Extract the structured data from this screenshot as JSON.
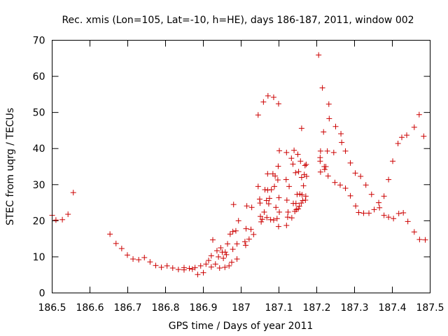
{
  "chart_data": {
    "type": "scatter",
    "title": "Rec. xmis (Lon=105, Lat=-10, h=HE), days 186-187, 2011, window 002",
    "xlabel": "GPS time / Days of year 2011",
    "ylabel": "STEC from uqrg / TECUs",
    "xlim": [
      186.5,
      187.5
    ],
    "ylim": [
      0,
      70
    ],
    "x_ticks": [
      186.5,
      186.6,
      186.7,
      186.8,
      186.9,
      187.0,
      187.1,
      187.2,
      187.3,
      187.4,
      187.5
    ],
    "x_tick_labels": [
      "186.5",
      "186.6",
      "186.7",
      "186.8",
      "186.9",
      "187",
      "187.1",
      "187.2",
      "187.3",
      "187.4",
      "187.5"
    ],
    "y_ticks": [
      0,
      10,
      20,
      30,
      40,
      50,
      60,
      70
    ],
    "y_tick_labels": [
      "0",
      "10",
      "20",
      "30",
      "40",
      "50",
      "60",
      "70"
    ],
    "grid": false,
    "legend": "none",
    "marker": "+",
    "color": "#cc0000",
    "series": [
      {
        "points": [
          [
            186.5,
            21.5
          ],
          [
            186.51,
            20.2
          ],
          [
            186.527,
            20.3
          ],
          [
            186.542,
            21.8
          ],
          [
            186.556,
            27.8
          ],
          [
            186.653,
            16.3
          ],
          [
            186.669,
            13.7
          ],
          [
            186.684,
            12.3
          ],
          [
            186.699,
            10.5
          ],
          [
            186.714,
            9.4
          ],
          [
            186.729,
            9.2
          ],
          [
            186.744,
            9.8
          ],
          [
            186.759,
            8.6
          ],
          [
            186.774,
            7.6
          ],
          [
            186.789,
            7.1
          ],
          [
            186.804,
            7.5
          ],
          [
            186.819,
            6.9
          ],
          [
            186.834,
            6.5
          ],
          [
            186.849,
            6.4
          ],
          [
            186.849,
            7.0
          ],
          [
            186.863,
            6.8
          ],
          [
            186.871,
            6.6
          ],
          [
            186.878,
            7.0
          ],
          [
            186.885,
            5.1
          ],
          [
            186.893,
            7.5
          ],
          [
            186.9,
            5.6
          ],
          [
            186.907,
            8.0
          ],
          [
            186.914,
            9.0
          ],
          [
            186.921,
            7.2
          ],
          [
            186.921,
            10.3
          ],
          [
            186.925,
            14.7
          ],
          [
            186.932,
            8.0
          ],
          [
            186.936,
            11.7
          ],
          [
            186.94,
            10.0
          ],
          [
            186.943,
            6.9
          ],
          [
            186.946,
            12.5
          ],
          [
            186.95,
            11.3
          ],
          [
            186.953,
            9.6
          ],
          [
            186.957,
            7.1
          ],
          [
            186.958,
            11.3
          ],
          [
            186.961,
            10.6
          ],
          [
            186.964,
            13.6
          ],
          [
            186.968,
            7.5
          ],
          [
            186.971,
            16.3
          ],
          [
            186.975,
            8.5
          ],
          [
            186.978,
            12.1
          ],
          [
            186.978,
            17.0
          ],
          [
            186.98,
            24.5
          ],
          [
            186.986,
            17.2
          ],
          [
            186.989,
            13.6
          ],
          [
            186.989,
            9.4
          ],
          [
            186.993,
            20.0
          ],
          [
            187.01,
            14.2
          ],
          [
            187.012,
            13.2
          ],
          [
            187.013,
            17.8
          ],
          [
            187.015,
            24.1
          ],
          [
            187.021,
            14.9
          ],
          [
            187.026,
            17.6
          ],
          [
            187.028,
            23.7
          ],
          [
            187.033,
            16.2
          ],
          [
            187.045,
            29.5
          ],
          [
            187.045,
            49.3
          ],
          [
            187.049,
            26.0
          ],
          [
            187.05,
            24.9
          ],
          [
            187.051,
            21.2
          ],
          [
            187.053,
            19.7
          ],
          [
            187.056,
            20.4
          ],
          [
            187.059,
            52.9
          ],
          [
            187.061,
            22.4
          ],
          [
            187.063,
            28.6
          ],
          [
            187.067,
            25.6
          ],
          [
            187.068,
            20.9
          ],
          [
            187.07,
            28.5
          ],
          [
            187.07,
            33.0
          ],
          [
            187.071,
            54.6
          ],
          [
            187.073,
            24.7
          ],
          [
            187.075,
            26.2
          ],
          [
            187.078,
            20.3
          ],
          [
            187.08,
            28.6
          ],
          [
            187.084,
            33.0
          ],
          [
            187.086,
            20.2
          ],
          [
            187.086,
            54.2
          ],
          [
            187.088,
            29.5
          ],
          [
            187.09,
            32.4
          ],
          [
            187.092,
            23.7
          ],
          [
            187.095,
            20.6
          ],
          [
            187.097,
            31.3
          ],
          [
            187.098,
            35.1
          ],
          [
            187.099,
            18.4
          ],
          [
            187.099,
            52.4
          ],
          [
            187.1,
            26.4
          ],
          [
            187.101,
            22.4
          ],
          [
            187.101,
            39.4
          ],
          [
            187.119,
            31.4
          ],
          [
            187.12,
            18.7
          ],
          [
            187.12,
            38.9
          ],
          [
            187.121,
            25.7
          ],
          [
            187.123,
            21.0
          ],
          [
            187.124,
            22.4
          ],
          [
            187.127,
            29.5
          ],
          [
            187.133,
            37.3
          ],
          [
            187.134,
            20.8
          ],
          [
            187.137,
            35.7
          ],
          [
            187.138,
            24.8
          ],
          [
            187.14,
            39.5
          ],
          [
            187.142,
            22.6
          ],
          [
            187.144,
            33.3
          ],
          [
            187.145,
            24.8
          ],
          [
            187.146,
            23.1
          ],
          [
            187.148,
            27.3
          ],
          [
            187.15,
            38.4
          ],
          [
            187.151,
            23.3
          ],
          [
            187.152,
            33.6
          ],
          [
            187.154,
            24.0
          ],
          [
            187.155,
            27.4
          ],
          [
            187.157,
            36.5
          ],
          [
            187.159,
            24.9
          ],
          [
            187.16,
            32.0
          ],
          [
            187.16,
            45.6
          ],
          [
            187.161,
            27.2
          ],
          [
            187.163,
            25.6
          ],
          [
            187.165,
            29.7
          ],
          [
            187.167,
            32.8
          ],
          [
            187.169,
            35.3
          ],
          [
            187.17,
            25.7
          ],
          [
            187.171,
            26.8
          ],
          [
            187.172,
            35.6
          ],
          [
            187.173,
            32.3
          ],
          [
            187.205,
            65.9
          ],
          [
            187.209,
            36.5
          ],
          [
            187.209,
            37.5
          ],
          [
            187.21,
            39.3
          ],
          [
            187.21,
            33.5
          ],
          [
            187.215,
            56.8
          ],
          [
            187.218,
            44.6
          ],
          [
            187.22,
            35.0
          ],
          [
            187.221,
            34.2
          ],
          [
            187.224,
            35.0
          ],
          [
            187.228,
            39.3
          ],
          [
            187.23,
            32.4
          ],
          [
            187.232,
            52.3
          ],
          [
            187.233,
            48.3
          ],
          [
            187.245,
            38.9
          ],
          [
            187.248,
            30.6
          ],
          [
            187.25,
            46.1
          ],
          [
            187.262,
            29.9
          ],
          [
            187.264,
            44.1
          ],
          [
            187.266,
            41.7
          ],
          [
            187.276,
            39.3
          ],
          [
            187.276,
            29.0
          ],
          [
            187.289,
            26.9
          ],
          [
            187.289,
            36.0
          ],
          [
            187.302,
            33.2
          ],
          [
            187.303,
            24.1
          ],
          [
            187.311,
            22.3
          ],
          [
            187.316,
            32.3
          ],
          [
            187.324,
            22.1
          ],
          [
            187.33,
            29.9
          ],
          [
            187.338,
            22.1
          ],
          [
            187.345,
            27.3
          ],
          [
            187.352,
            23.1
          ],
          [
            187.364,
            25.0
          ],
          [
            187.366,
            23.6
          ],
          [
            187.378,
            26.8
          ],
          [
            187.378,
            21.5
          ],
          [
            187.39,
            31.4
          ],
          [
            187.39,
            21.0
          ],
          [
            187.401,
            36.5
          ],
          [
            187.403,
            20.6
          ],
          [
            187.415,
            41.4
          ],
          [
            187.417,
            22.0
          ],
          [
            187.425,
            43.1
          ],
          [
            187.429,
            22.2
          ],
          [
            187.438,
            43.7
          ],
          [
            187.441,
            19.8
          ],
          [
            187.458,
            45.9
          ],
          [
            187.458,
            16.9
          ],
          [
            187.471,
            49.4
          ],
          [
            187.472,
            14.8
          ],
          [
            187.483,
            43.4
          ],
          [
            187.487,
            14.7
          ]
        ]
      }
    ]
  }
}
